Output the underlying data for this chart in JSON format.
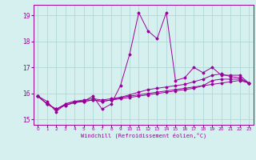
{
  "xlabel": "Windchill (Refroidissement éolien,°C)",
  "ylabel": "",
  "background_color": "#d6f0f0",
  "grid_color": "#b0d8d8",
  "line_color": "#990099",
  "ylim": [
    14.8,
    19.4
  ],
  "xlim": [
    -0.5,
    23.5
  ],
  "yticks": [
    15,
    16,
    17,
    18,
    19
  ],
  "xticks": [
    0,
    1,
    2,
    3,
    4,
    5,
    6,
    7,
    8,
    9,
    10,
    11,
    12,
    13,
    14,
    15,
    16,
    17,
    18,
    19,
    20,
    21,
    22,
    23
  ],
  "series1": [
    15.9,
    15.7,
    15.3,
    15.6,
    15.7,
    15.7,
    15.9,
    15.4,
    15.6,
    16.3,
    17.5,
    19.1,
    18.4,
    18.1,
    19.1,
    16.5,
    16.6,
    17.0,
    16.8,
    17.0,
    16.7,
    16.7,
    16.7,
    16.4
  ],
  "series2": [
    15.9,
    15.6,
    15.4,
    15.6,
    15.7,
    15.75,
    15.8,
    15.75,
    15.8,
    15.85,
    15.9,
    15.95,
    16.0,
    16.05,
    16.1,
    16.15,
    16.2,
    16.25,
    16.3,
    16.35,
    16.4,
    16.45,
    16.5,
    16.4
  ],
  "series3": [
    15.9,
    15.6,
    15.4,
    15.55,
    15.65,
    15.7,
    15.75,
    15.7,
    15.75,
    15.8,
    15.85,
    15.9,
    15.95,
    16.0,
    16.05,
    16.1,
    16.15,
    16.2,
    16.3,
    16.5,
    16.55,
    16.55,
    16.55,
    16.4
  ],
  "series4": [
    15.9,
    15.6,
    15.4,
    15.55,
    15.65,
    15.7,
    15.75,
    15.7,
    15.75,
    15.85,
    15.95,
    16.05,
    16.15,
    16.2,
    16.25,
    16.3,
    16.35,
    16.45,
    16.55,
    16.7,
    16.75,
    16.65,
    16.6,
    16.4
  ]
}
